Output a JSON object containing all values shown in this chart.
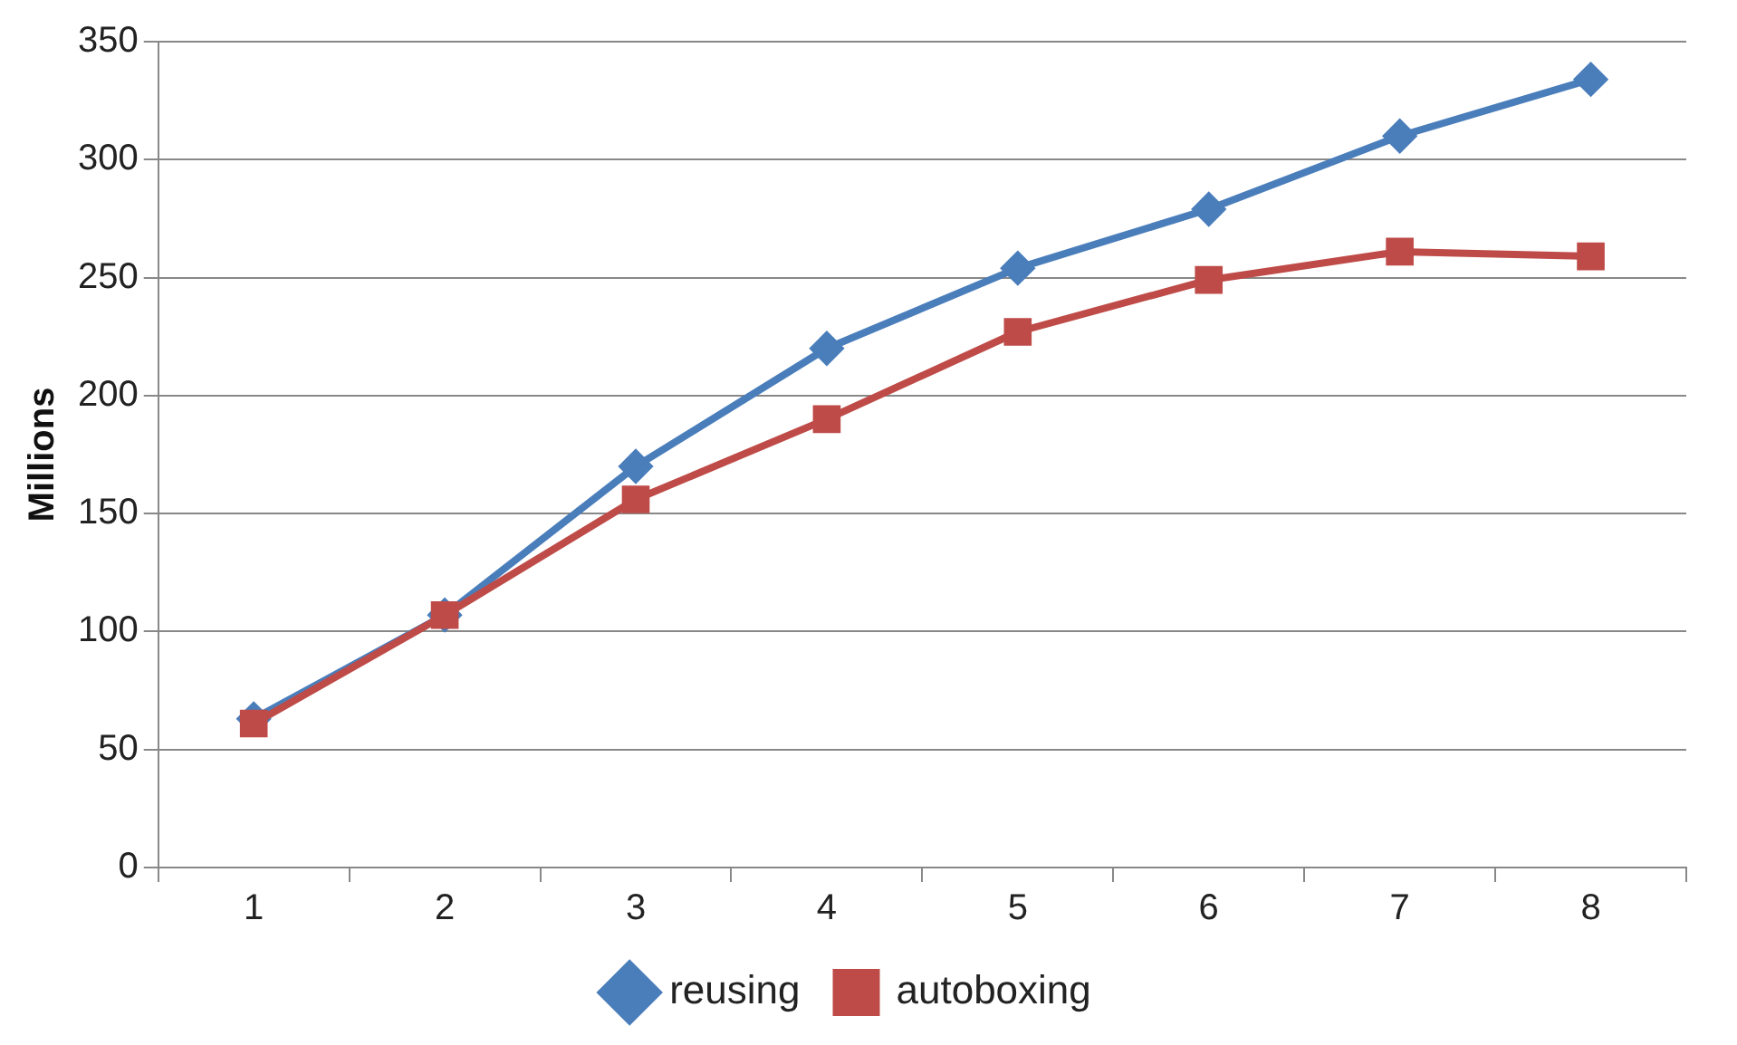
{
  "chart_data": {
    "type": "line",
    "ylabel": "Millions",
    "categories": [
      "1",
      "2",
      "3",
      "4",
      "5",
      "6",
      "7",
      "8"
    ],
    "series": [
      {
        "name": "reusing",
        "color": "#4a7ebb",
        "marker": "diamond",
        "values": [
          63,
          107,
          170,
          220,
          254,
          279,
          310,
          334
        ]
      },
      {
        "name": "autoboxing",
        "color": "#be4b48",
        "marker": "square",
        "values": [
          61,
          107,
          156,
          190,
          227,
          249,
          261,
          259
        ]
      }
    ],
    "ylim": [
      0,
      350
    ],
    "yticks": [
      0,
      50,
      100,
      150,
      200,
      250,
      300,
      350
    ],
    "grid": "y",
    "legend": "bottom",
    "line_style": "solid"
  }
}
